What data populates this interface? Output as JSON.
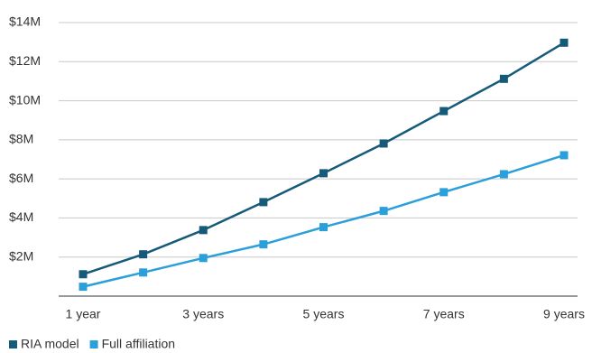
{
  "chart_data": {
    "type": "line",
    "categories": [
      "1 year",
      null,
      "3 years",
      null,
      "5 years",
      null,
      "7 years",
      null,
      "9 years"
    ],
    "series": [
      {
        "name": "RIA model",
        "color": "#165a7a",
        "values": [
          1.12,
          2.14,
          3.38,
          4.81,
          6.29,
          7.81,
          9.47,
          11.12,
          12.97
        ]
      },
      {
        "name": "Full affiliation",
        "color": "#2b9fd9",
        "values": [
          0.48,
          1.21,
          1.95,
          2.65,
          3.53,
          4.36,
          5.32,
          6.24,
          7.21
        ]
      }
    ],
    "ylim": [
      0,
      14
    ],
    "yticks": [
      {
        "value": 2,
        "label": "$2M"
      },
      {
        "value": 4,
        "label": "$4M"
      },
      {
        "value": 6,
        "label": "$6M"
      },
      {
        "value": 8,
        "label": "$8M"
      },
      {
        "value": 10,
        "label": "$10M"
      },
      {
        "value": 12,
        "label": "$12M"
      },
      {
        "value": 14,
        "label": "$14M"
      }
    ],
    "grid": true,
    "legend": "bottom-left"
  }
}
